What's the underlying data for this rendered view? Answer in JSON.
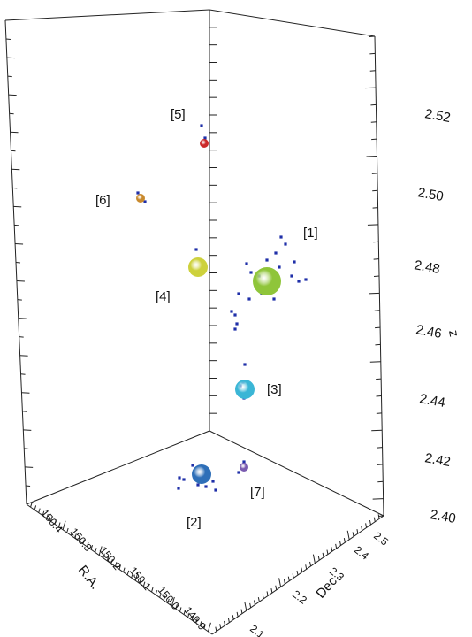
{
  "chart_data": {
    "type": "scatter",
    "projection": "3d",
    "axes": {
      "x": {
        "label": "R.A.",
        "ticks": [
          "150.4",
          "150.3",
          "150.2",
          "150.1",
          "150.0",
          "149.9"
        ],
        "range": [
          149.9,
          150.45
        ]
      },
      "y": {
        "label": "Dec",
        "ticks": [
          "2.1",
          "2.2",
          "2.3",
          "2.4",
          "2.5"
        ],
        "range": [
          2.05,
          2.55
        ]
      },
      "z": {
        "label": "z",
        "ticks": [
          "2.40",
          "2.42",
          "2.44",
          "2.46",
          "2.48",
          "2.50",
          "2.52"
        ],
        "range": [
          2.395,
          2.535
        ]
      }
    },
    "groups": [
      {
        "label": "[1]",
        "color": "#8fc53a",
        "size": "large"
      },
      {
        "label": "[2]",
        "color": "#2e6fb8",
        "size": "medium"
      },
      {
        "label": "[3]",
        "color": "#3bb6d6",
        "size": "medium"
      },
      {
        "label": "[4]",
        "color": "#cdd13c",
        "size": "medium"
      },
      {
        "label": "[5]",
        "color": "#cc2a2a",
        "size": "small"
      },
      {
        "label": "[6]",
        "color": "#c98a2e",
        "size": "small"
      },
      {
        "label": "[7]",
        "color": "#7a5bb0",
        "size": "small"
      }
    ],
    "member_color": "#1f2fa8"
  }
}
